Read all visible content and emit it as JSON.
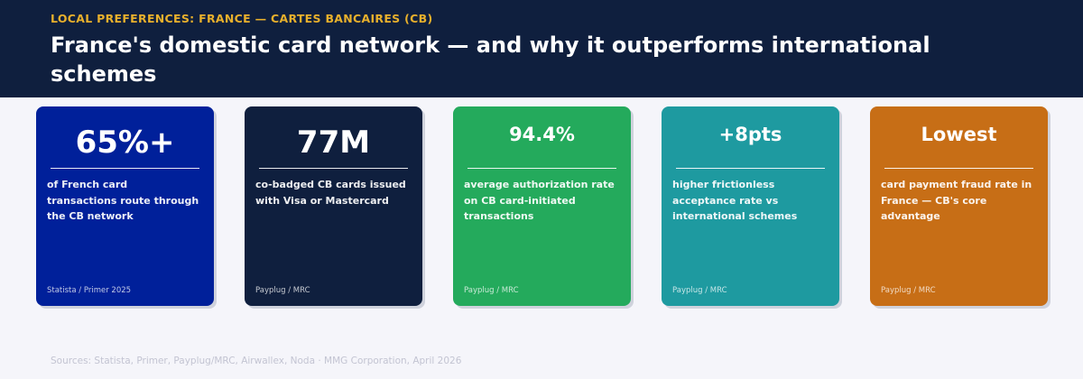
{
  "header": {
    "eyebrow": "LOCAL PREFERENCES: FRANCE — CARTES BANCAIRES (CB)",
    "title": "France's domestic card network — and why it outperforms international schemes"
  },
  "colors": {
    "header_bg": "#0f1f3e",
    "eyebrow": "#e8b02c",
    "page_bg": "#f5f5fa"
  },
  "cards": [
    {
      "stat": "65%+",
      "description": "of French card transactions route through the CB network",
      "source": "Statista / Primer 2025",
      "color": "#00209a"
    },
    {
      "stat": "77M",
      "description": "co-badged CB cards issued with Visa or Mastercard",
      "source": "Payplug / MRC",
      "color": "#0f1f3e"
    },
    {
      "stat": "94.4%",
      "description": "average authorization rate on CB card-initiated transactions",
      "source": "Payplug / MRC",
      "color": "#24aa5c"
    },
    {
      "stat": "+8pts",
      "description": "higher frictionless acceptance rate vs international schemes",
      "source": "Payplug / MRC",
      "color": "#1e9aa0"
    },
    {
      "stat": "Lowest",
      "description": "card payment fraud rate in France — CB's core advantage",
      "source": "Payplug / MRC",
      "color": "#c76e16"
    }
  ],
  "footer": {
    "text": "Sources: Statista, Primer, Payplug/MRC, Airwallex, Noda  ·  MMG Corporation, April 2026"
  }
}
